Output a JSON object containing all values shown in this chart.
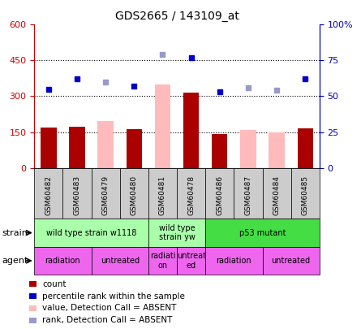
{
  "title": "GDS2665 / 143109_at",
  "samples": [
    "GSM60482",
    "GSM60483",
    "GSM60479",
    "GSM60480",
    "GSM60481",
    "GSM60478",
    "GSM60486",
    "GSM60487",
    "GSM60484",
    "GSM60485"
  ],
  "count_present": [
    170,
    172,
    null,
    162,
    null,
    315,
    140,
    null,
    null,
    165
  ],
  "count_absent": [
    null,
    null,
    195,
    null,
    350,
    null,
    null,
    160,
    150,
    null
  ],
  "rank_present": [
    55,
    62,
    null,
    57,
    null,
    77,
    53,
    null,
    null,
    62
  ],
  "rank_absent": [
    null,
    null,
    60,
    null,
    79,
    null,
    null,
    56,
    54,
    null
  ],
  "ylim_left": [
    0,
    600
  ],
  "ylim_right": [
    0,
    100
  ],
  "yticks_left": [
    0,
    150,
    300,
    450,
    600
  ],
  "yticks_right": [
    0,
    25,
    50,
    75,
    100
  ],
  "ytick_labels_left": [
    "0",
    "150",
    "300",
    "450",
    "600"
  ],
  "ytick_labels_right": [
    "0",
    "25",
    "50",
    "75",
    "100%"
  ],
  "hlines": [
    150,
    300,
    450
  ],
  "strain_groups": [
    {
      "label": "wild type strain w1118",
      "start": 0,
      "end": 4,
      "color": "#aaffaa"
    },
    {
      "label": "wild type\nstrain yw",
      "start": 4,
      "end": 6,
      "color": "#aaffaa"
    },
    {
      "label": "p53 mutant",
      "start": 6,
      "end": 10,
      "color": "#44dd44"
    }
  ],
  "agent_groups": [
    {
      "label": "radiation",
      "start": 0,
      "end": 2,
      "color": "#ee66ee"
    },
    {
      "label": "untreated",
      "start": 2,
      "end": 4,
      "color": "#ee66ee"
    },
    {
      "label": "radiati\non",
      "start": 4,
      "end": 5,
      "color": "#ee66ee"
    },
    {
      "label": "untreat\ned",
      "start": 5,
      "end": 6,
      "color": "#ee66ee"
    },
    {
      "label": "radiation",
      "start": 6,
      "end": 8,
      "color": "#ee66ee"
    },
    {
      "label": "untreated",
      "start": 8,
      "end": 10,
      "color": "#ee66ee"
    }
  ],
  "bar_color_present": "#aa0000",
  "bar_color_absent": "#ffbbbb",
  "dot_color_present": "#0000cc",
  "dot_color_absent": "#9999cc",
  "bar_width": 0.55,
  "left_axis_color": "#cc0000",
  "right_axis_color": "#0000bb",
  "plot_bg": "#ffffff",
  "fig_bg": "#ffffff"
}
